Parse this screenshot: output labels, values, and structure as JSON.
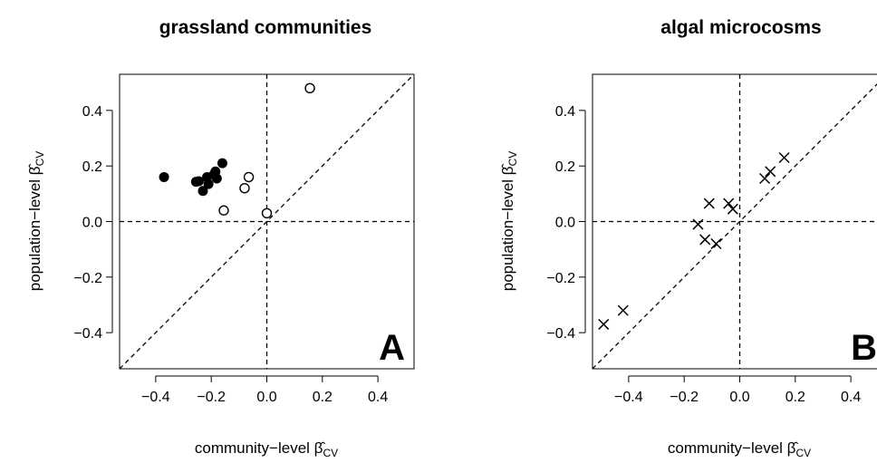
{
  "chart_data": [
    {
      "type": "scatter",
      "title": "grassland communities",
      "panel_label": "A",
      "xlabel": "community−level β̂",
      "xlabel_sub": "CV",
      "ylabel": "population−level β̂",
      "ylabel_sub": "CV",
      "xlim": [
        -0.53,
        0.53
      ],
      "ylim": [
        -0.53,
        0.53
      ],
      "xticks": [
        -0.4,
        -0.2,
        0.0,
        0.2,
        0.4
      ],
      "xtick_labels": [
        "−0.4",
        "−0.2",
        "0.0",
        "0.2",
        "0.4"
      ],
      "yticks": [
        -0.4,
        -0.2,
        0.0,
        0.2,
        0.4
      ],
      "ytick_labels": [
        "−0.4",
        "−0.2",
        "0.0",
        "0.2",
        "0.4"
      ],
      "reference_lines": [
        "x = 0",
        "y = 0",
        "y = x"
      ],
      "series": [
        {
          "marker": "filled-circle",
          "points": [
            [
              -0.37,
              0.16
            ],
            [
              -0.255,
              0.143
            ],
            [
              -0.245,
              0.145
            ],
            [
              -0.23,
              0.11
            ],
            [
              -0.215,
              0.16
            ],
            [
              -0.21,
              0.135
            ],
            [
              -0.19,
              0.17
            ],
            [
              -0.185,
              0.18
            ],
            [
              -0.18,
              0.155
            ],
            [
              -0.16,
              0.21
            ]
          ]
        },
        {
          "marker": "open-circle",
          "points": [
            [
              -0.155,
              0.04
            ],
            [
              -0.08,
              0.12
            ],
            [
              -0.065,
              0.16
            ],
            [
              0.0,
              0.03
            ],
            [
              0.155,
              0.48
            ]
          ]
        }
      ]
    },
    {
      "type": "scatter",
      "title": "algal microcosms",
      "panel_label": "B",
      "xlabel": "community−level β̂",
      "xlabel_sub": "CV",
      "ylabel": "population−level β̂",
      "ylabel_sub": "CV",
      "xlim": [
        -0.53,
        0.53
      ],
      "ylim": [
        -0.53,
        0.53
      ],
      "xticks": [
        -0.4,
        -0.2,
        0.0,
        0.2,
        0.4
      ],
      "xtick_labels": [
        "−0.4",
        "−0.2",
        "0.0",
        "0.2",
        "0.4"
      ],
      "yticks": [
        -0.4,
        -0.2,
        0.0,
        0.2,
        0.4
      ],
      "ytick_labels": [
        "−0.4",
        "−0.2",
        "0.0",
        "0.2",
        "0.4"
      ],
      "reference_lines": [
        "x = 0",
        "y = 0",
        "y = x"
      ],
      "series": [
        {
          "marker": "cross",
          "points": [
            [
              -0.49,
              -0.37
            ],
            [
              -0.42,
              -0.32
            ],
            [
              -0.15,
              -0.01
            ],
            [
              -0.125,
              -0.065
            ],
            [
              -0.11,
              0.065
            ],
            [
              -0.085,
              -0.08
            ],
            [
              -0.04,
              0.065
            ],
            [
              -0.025,
              0.045
            ],
            [
              0.09,
              0.155
            ],
            [
              0.11,
              0.18
            ],
            [
              0.16,
              0.23
            ]
          ]
        }
      ]
    }
  ]
}
